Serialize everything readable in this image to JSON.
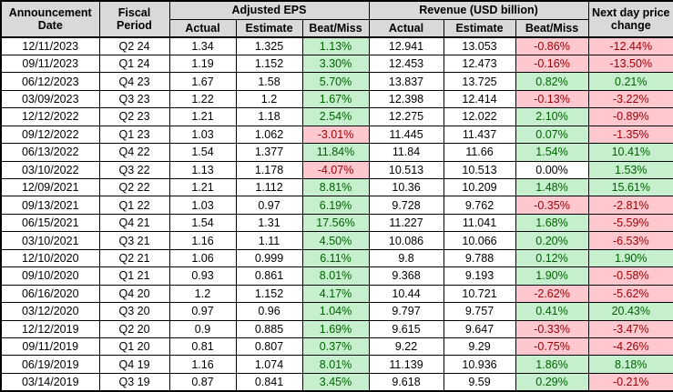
{
  "colors": {
    "header_bg": "#d9d9d9",
    "positive_bg": "#c6efce",
    "positive_text": "#006100",
    "negative_bg": "#ffc7ce",
    "negative_text": "#9c0006",
    "border": "#000000"
  },
  "header": {
    "announcement_date": "Announcement Date",
    "fiscal_period": "Fiscal Period",
    "adjusted_eps": "Adjusted EPS",
    "revenue": "Revenue (USD billion)",
    "next_day": "Next day price change",
    "sub": {
      "actual": "Actual",
      "estimate": "Estimate",
      "beat_miss": "Beat/Miss"
    }
  },
  "chart_data": {
    "type": "table",
    "title": "Quarterly earnings: adjusted EPS, revenue vs estimates, and next-day price change",
    "column_groups": [
      "Announcement Date",
      "Fiscal Period",
      "Adjusted EPS",
      "Revenue (USD billion)",
      "Next day price change"
    ],
    "columns": [
      "Announcement Date",
      "Fiscal Period",
      "EPS Actual",
      "EPS Estimate",
      "EPS Beat/Miss",
      "Revenue Actual",
      "Revenue Estimate",
      "Revenue Beat/Miss",
      "Next day price change"
    ],
    "rows": [
      [
        "12/11/2023",
        "Q2 24",
        "1.34",
        "1.325",
        "1.13%",
        "12.941",
        "13.053",
        "-0.86%",
        "-12.44%"
      ],
      [
        "09/11/2023",
        "Q1 24",
        "1.19",
        "1.152",
        "3.30%",
        "12.453",
        "12.473",
        "-0.16%",
        "-13.50%"
      ],
      [
        "06/12/2023",
        "Q4 23",
        "1.67",
        "1.58",
        "5.70%",
        "13.837",
        "13.725",
        "0.82%",
        "0.21%"
      ],
      [
        "03/09/2023",
        "Q3 23",
        "1.22",
        "1.2",
        "1.67%",
        "12.398",
        "12.414",
        "-0.13%",
        "-3.22%"
      ],
      [
        "12/12/2022",
        "Q2 23",
        "1.21",
        "1.18",
        "2.54%",
        "12.275",
        "12.022",
        "2.10%",
        "-0.89%"
      ],
      [
        "09/12/2022",
        "Q1 23",
        "1.03",
        "1.062",
        "-3.01%",
        "11.445",
        "11.437",
        "0.07%",
        "-1.35%"
      ],
      [
        "06/13/2022",
        "Q4 22",
        "1.54",
        "1.377",
        "11.84%",
        "11.84",
        "11.66",
        "1.54%",
        "10.41%"
      ],
      [
        "03/10/2022",
        "Q3 22",
        "1.13",
        "1.178",
        "-4.07%",
        "10.513",
        "10.513",
        "0.00%",
        "1.53%"
      ],
      [
        "12/09/2021",
        "Q2 22",
        "1.21",
        "1.112",
        "8.81%",
        "10.36",
        "10.209",
        "1.48%",
        "15.61%"
      ],
      [
        "09/13/2021",
        "Q1 22",
        "1.03",
        "0.97",
        "6.19%",
        "9.728",
        "9.762",
        "-0.35%",
        "-2.81%"
      ],
      [
        "06/15/2021",
        "Q4 21",
        "1.54",
        "1.31",
        "17.56%",
        "11.227",
        "11.041",
        "1.68%",
        "-5.59%"
      ],
      [
        "03/10/2021",
        "Q3 21",
        "1.16",
        "1.11",
        "4.50%",
        "10.086",
        "10.066",
        "0.20%",
        "-6.53%"
      ],
      [
        "12/10/2020",
        "Q2 21",
        "1.06",
        "0.999",
        "6.11%",
        "9.8",
        "9.788",
        "0.12%",
        "1.90%"
      ],
      [
        "09/10/2020",
        "Q1 21",
        "0.93",
        "0.861",
        "8.01%",
        "9.368",
        "9.193",
        "1.90%",
        "-0.58%"
      ],
      [
        "06/16/2020",
        "Q4 20",
        "1.2",
        "1.152",
        "4.17%",
        "10.44",
        "10.721",
        "-2.62%",
        "-5.62%"
      ],
      [
        "03/12/2020",
        "Q3 20",
        "0.97",
        "0.96",
        "1.04%",
        "9.797",
        "9.757",
        "0.41%",
        "20.43%"
      ],
      [
        "12/12/2019",
        "Q2 20",
        "0.9",
        "0.885",
        "1.69%",
        "9.615",
        "9.647",
        "-0.33%",
        "-3.47%"
      ],
      [
        "09/11/2019",
        "Q1 20",
        "0.81",
        "0.807",
        "0.37%",
        "9.22",
        "9.29",
        "-0.75%",
        "-4.26%"
      ],
      [
        "06/19/2019",
        "Q4 19",
        "1.16",
        "1.074",
        "8.01%",
        "11.139",
        "10.936",
        "1.86%",
        "8.18%"
      ],
      [
        "03/14/2019",
        "Q3 19",
        "0.87",
        "0.841",
        "3.45%",
        "9.618",
        "9.59",
        "0.29%",
        "-0.21%"
      ]
    ]
  }
}
